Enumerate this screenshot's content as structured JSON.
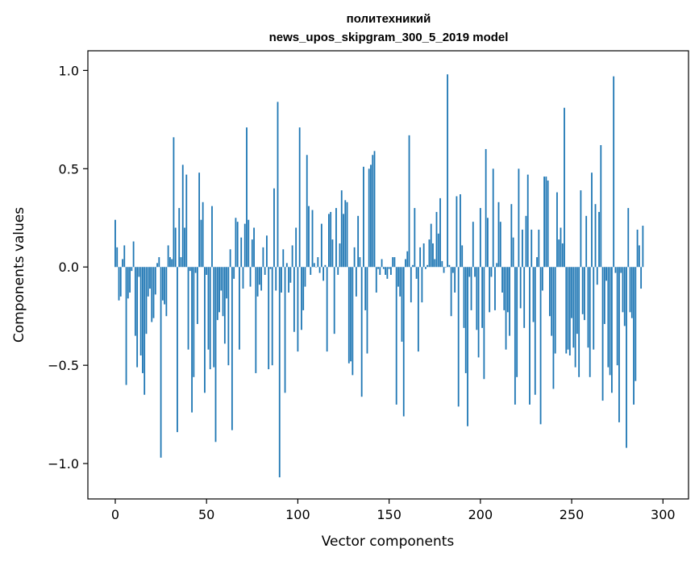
{
  "chart_data": {
    "type": "bar",
    "title_line1": "политехникий",
    "title_line2": "news_upos_skipgram_300_5_2019 model",
    "xlabel": "Vector components",
    "ylabel": "Components values",
    "xlim": [
      -15,
      314
    ],
    "ylim": [
      -1.18,
      1.1
    ],
    "xticks": [
      0,
      50,
      100,
      150,
      200,
      250,
      300
    ],
    "xtick_labels": [
      "0",
      "50",
      "100",
      "150",
      "200",
      "250",
      "300"
    ],
    "yticks": [
      1.0,
      0.5,
      0.0,
      -0.5,
      -1.0
    ],
    "ytick_labels": [
      "1.0",
      "0.5",
      "0.0",
      "−0.5",
      "−1.0"
    ],
    "bar_color": "#1f77b4",
    "values": [
      0.24,
      0.1,
      -0.17,
      -0.15,
      0.04,
      0.11,
      -0.6,
      -0.16,
      -0.13,
      -0.02,
      0.13,
      -0.35,
      -0.51,
      -0.05,
      -0.45,
      -0.54,
      -0.65,
      -0.34,
      -0.15,
      -0.11,
      -0.28,
      -0.26,
      -0.14,
      0.02,
      0.05,
      -0.97,
      -0.17,
      -0.19,
      -0.25,
      0.11,
      0.05,
      0.04,
      0.66,
      0.2,
      -0.84,
      0.3,
      0.05,
      0.52,
      0.2,
      0.47,
      -0.42,
      -0.02,
      -0.74,
      -0.56,
      -0.03,
      -0.29,
      0.48,
      0.24,
      0.33,
      -0.64,
      -0.04,
      -0.42,
      -0.52,
      0.31,
      -0.51,
      -0.89,
      -0.27,
      -0.23,
      -0.12,
      -0.25,
      -0.39,
      -0.16,
      -0.5,
      0.09,
      -0.83,
      -0.06,
      0.25,
      0.23,
      -0.42,
      0.15,
      -0.11,
      0.22,
      0.71,
      0.24,
      -0.1,
      0.14,
      0.2,
      -0.54,
      -0.15,
      -0.09,
      -0.12,
      0.1,
      -0.04,
      0.16,
      -0.52,
      -0.01,
      -0.5,
      0.4,
      -0.12,
      0.84,
      -1.07,
      -0.13,
      0.09,
      -0.64,
      0.02,
      -0.13,
      -0.08,
      0.11,
      -0.33,
      0.2,
      -0.43,
      0.71,
      -0.32,
      -0.22,
      -0.1,
      0.57,
      0.31,
      -0.04,
      0.29,
      0.02,
      0.0,
      0.05,
      -0.03,
      0.22,
      -0.07,
      0.01,
      -0.43,
      0.27,
      0.28,
      0.14,
      -0.34,
      0.3,
      -0.04,
      0.12,
      0.39,
      0.27,
      0.34,
      0.33,
      -0.49,
      -0.48,
      -0.55,
      0.1,
      -0.15,
      0.26,
      0.05,
      -0.66,
      0.51,
      -0.22,
      -0.44,
      0.5,
      0.52,
      0.57,
      0.59,
      -0.13,
      -0.01,
      -0.04,
      0.04,
      -0.01,
      -0.04,
      -0.06,
      -0.01,
      -0.04,
      0.05,
      0.05,
      -0.7,
      -0.1,
      -0.15,
      -0.38,
      -0.76,
      0.04,
      0.08,
      0.67,
      -0.18,
      0.01,
      0.3,
      -0.06,
      -0.43,
      0.1,
      -0.18,
      0.12,
      -0.01,
      0.01,
      0.14,
      0.22,
      0.12,
      0.04,
      0.28,
      0.17,
      0.35,
      0.03,
      -0.03,
      0.0,
      0.98,
      0.01,
      -0.25,
      -0.03,
      -0.13,
      0.36,
      -0.71,
      0.37,
      0.11,
      -0.31,
      -0.54,
      -0.81,
      -0.05,
      -0.22,
      0.23,
      -0.05,
      -0.32,
      -0.46,
      0.3,
      -0.31,
      -0.57,
      0.6,
      0.25,
      -0.23,
      -0.05,
      0.5,
      -0.22,
      0.02,
      0.33,
      0.23,
      -0.13,
      -0.22,
      -0.42,
      -0.23,
      -0.35,
      0.32,
      0.15,
      -0.7,
      -0.56,
      0.5,
      -0.21,
      0.19,
      -0.31,
      0.26,
      0.47,
      -0.7,
      0.19,
      -0.28,
      -0.65,
      0.05,
      0.19,
      -0.8,
      -0.12,
      0.46,
      0.46,
      0.44,
      -0.25,
      -0.35,
      -0.62,
      -0.44,
      0.38,
      0.14,
      0.2,
      0.12,
      0.81,
      -0.44,
      -0.42,
      -0.45,
      -0.26,
      -0.41,
      -0.51,
      -0.34,
      -0.56,
      0.39,
      -0.24,
      -0.27,
      0.26,
      -0.41,
      -0.56,
      0.48,
      -0.42,
      0.32,
      -0.09,
      0.28,
      0.62,
      -0.68,
      -0.29,
      -0.07,
      -0.51,
      -0.55,
      -0.64,
      0.97,
      -0.03,
      -0.5,
      -0.79,
      -0.03,
      -0.23,
      -0.3,
      -0.92,
      0.3,
      -0.23,
      -0.26,
      -0.7,
      -0.58,
      0.19,
      0.11,
      -0.11,
      0.21
    ]
  }
}
